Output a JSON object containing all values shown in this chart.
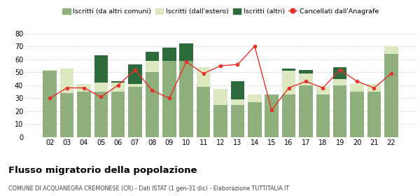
{
  "years": [
    "02",
    "03",
    "04",
    "05",
    "06",
    "07",
    "08",
    "09",
    "10",
    "11",
    "12",
    "13",
    "14",
    "15",
    "16",
    "17",
    "18",
    "19",
    "20",
    "21",
    "22"
  ],
  "iscritti_altri_comuni": [
    51,
    34,
    35,
    35,
    35,
    39,
    50,
    59,
    59,
    39,
    25,
    25,
    27,
    33,
    33,
    40,
    33,
    40,
    35,
    35,
    64
  ],
  "iscritti_estero": [
    1,
    19,
    6,
    7,
    7,
    2,
    9,
    0,
    0,
    15,
    12,
    4,
    6,
    0,
    18,
    9,
    6,
    5,
    6,
    6,
    6
  ],
  "iscritti_altri": [
    0,
    0,
    0,
    21,
    1,
    15,
    7,
    10,
    13,
    0,
    0,
    14,
    0,
    0,
    2,
    3,
    0,
    9,
    0,
    0,
    0
  ],
  "cancellati": [
    30,
    38,
    38,
    31,
    40,
    52,
    36,
    30,
    58,
    49,
    55,
    56,
    70,
    21,
    38,
    43,
    38,
    52,
    43,
    38,
    49
  ],
  "color_altri_comuni": "#8faf7c",
  "color_estero": "#dce8c0",
  "color_altri": "#2e6b3c",
  "color_cancellati": "#e8302a",
  "legend_labels": [
    "Iscritti (da altri comuni)",
    "Iscritti (dall'estero)",
    "Iscritti (altri)",
    "Cancellati dall'Anagrafe"
  ],
  "title": "Flusso migratorio della popolazione",
  "subtitle": "COMUNE DI ACQUANEGRA CREMONESE (CR) - Dati ISTAT (1 gen-31 dic) - Elaborazione TUTTITALIA.IT",
  "ylim": [
    0,
    80
  ],
  "yticks": [
    0,
    10,
    20,
    30,
    40,
    50,
    60,
    70,
    80
  ]
}
